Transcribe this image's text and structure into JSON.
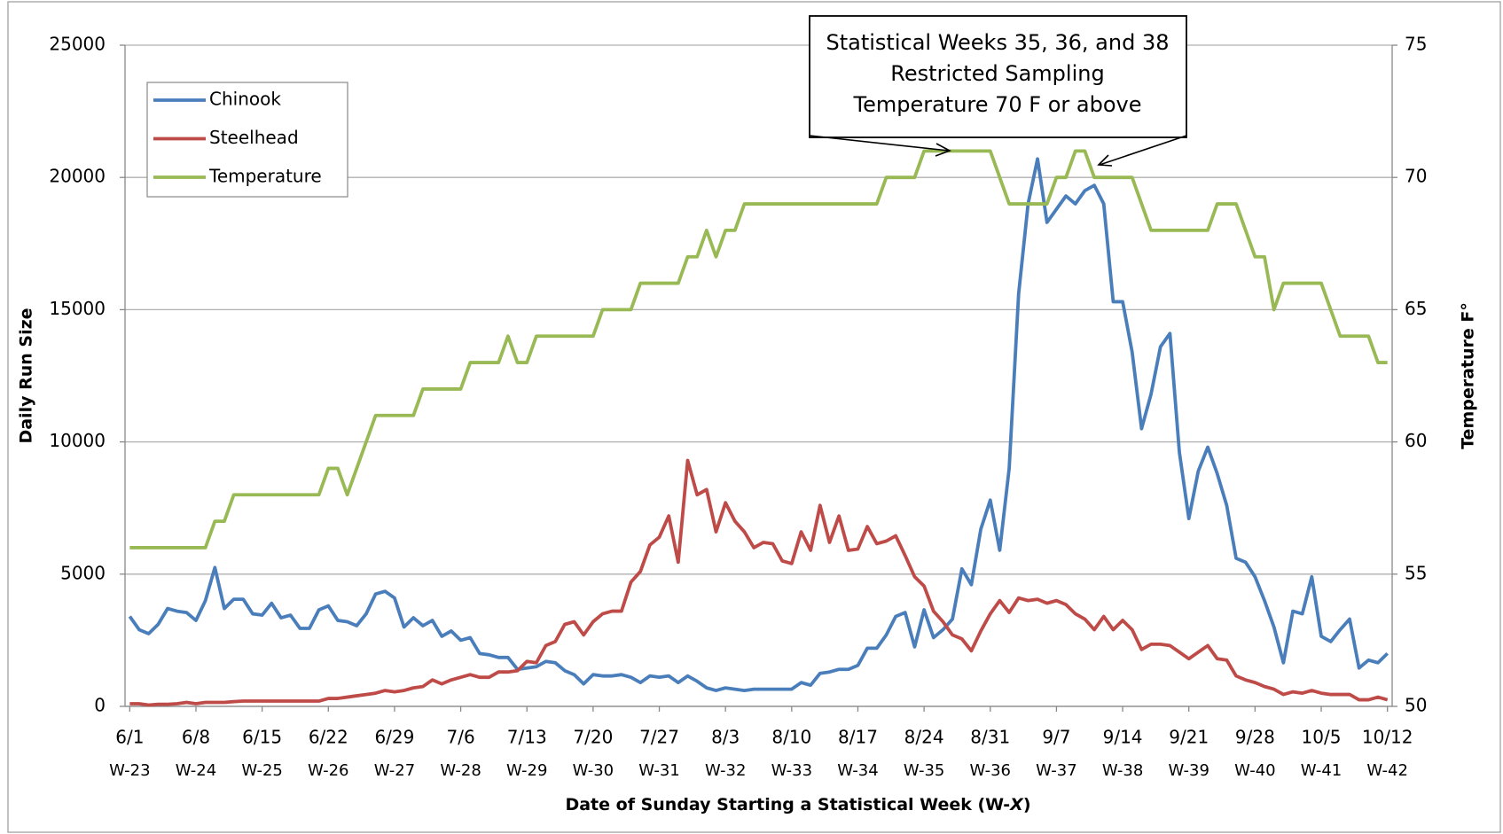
{
  "chart_data": {
    "type": "line",
    "ylabel": "Daily Run Size",
    "y2label": "Temperature F°",
    "xlabel": [
      "Date of Sunday Starting a Statistical Week (W-",
      "X",
      ")"
    ],
    "annotation": [
      "Statistical Weeks 35, 36, and 38",
      "Restricted Sampling",
      "Temperature 70 F or above"
    ],
    "ylim": [
      0,
      25000
    ],
    "yticks": [
      0,
      5000,
      10000,
      15000,
      20000,
      25000
    ],
    "y2lim": [
      50,
      75
    ],
    "y2ticks": [
      50,
      55,
      60,
      65,
      70,
      75
    ],
    "grid": true,
    "legend": "upper left",
    "categories": [
      "6/1",
      null,
      null,
      null,
      null,
      null,
      null,
      "6/8",
      null,
      null,
      null,
      null,
      null,
      null,
      "6/15",
      null,
      null,
      null,
      null,
      null,
      null,
      "6/22",
      null,
      null,
      null,
      null,
      null,
      null,
      "6/29",
      null,
      null,
      null,
      null,
      null,
      null,
      "7/6",
      null,
      null,
      null,
      null,
      null,
      null,
      "7/13",
      null,
      null,
      null,
      null,
      null,
      null,
      "7/20",
      null,
      null,
      null,
      null,
      null,
      null,
      "7/27",
      null,
      null,
      null,
      null,
      null,
      null,
      "8/3",
      null,
      null,
      null,
      null,
      null,
      null,
      "8/10",
      null,
      null,
      null,
      null,
      null,
      null,
      "8/17",
      null,
      null,
      null,
      null,
      null,
      null,
      "8/24",
      null,
      null,
      null,
      null,
      null,
      null,
      "8/31",
      null,
      null,
      null,
      null,
      null,
      null,
      "9/7",
      null,
      null,
      null,
      null,
      null,
      null,
      "9/14",
      null,
      null,
      null,
      null,
      null,
      null,
      "9/21",
      null,
      null,
      null,
      null,
      null,
      null,
      "9/28",
      null,
      null,
      null,
      null,
      null,
      null,
      "10/5",
      null,
      null,
      null,
      null,
      null,
      null,
      "10/12"
    ],
    "category_weeks": [
      "W-23",
      null,
      null,
      null,
      null,
      null,
      null,
      "W-24",
      null,
      null,
      null,
      null,
      null,
      null,
      "W-25",
      null,
      null,
      null,
      null,
      null,
      null,
      "W-26",
      null,
      null,
      null,
      null,
      null,
      null,
      "W-27",
      null,
      null,
      null,
      null,
      null,
      null,
      "W-28",
      null,
      null,
      null,
      null,
      null,
      null,
      "W-29",
      null,
      null,
      null,
      null,
      null,
      null,
      "W-30",
      null,
      null,
      null,
      null,
      null,
      null,
      "W-31",
      null,
      null,
      null,
      null,
      null,
      null,
      "W-32",
      null,
      null,
      null,
      null,
      null,
      null,
      "W-33",
      null,
      null,
      null,
      null,
      null,
      null,
      "W-34",
      null,
      null,
      null,
      null,
      null,
      null,
      "W-35",
      null,
      null,
      null,
      null,
      null,
      null,
      "W-36",
      null,
      null,
      null,
      null,
      null,
      null,
      "W-37",
      null,
      null,
      null,
      null,
      null,
      null,
      "W-38",
      null,
      null,
      null,
      null,
      null,
      null,
      "W-39",
      null,
      null,
      null,
      null,
      null,
      null,
      "W-40",
      null,
      null,
      null,
      null,
      null,
      null,
      "W-41",
      null,
      null,
      null,
      null,
      null,
      null,
      "W-42"
    ],
    "series": [
      {
        "name": "Chinook",
        "color": "#4a7ebb",
        "values": [
          3400,
          2900,
          2750,
          3100,
          3700,
          3600,
          3550,
          3250,
          4000,
          5250,
          3700,
          4050,
          4050,
          3500,
          3450,
          3900,
          3350,
          3450,
          2950,
          2950,
          3650,
          3800,
          3250,
          3200,
          3050,
          3500,
          4250,
          4350,
          4100,
          3000,
          3350,
          3050,
          3250,
          2650,
          2850,
          2500,
          2600,
          2000,
          1950,
          1850,
          1850,
          1400,
          1450,
          1500,
          1700,
          1650,
          1350,
          1200,
          850,
          1200,
          1150,
          1150,
          1200,
          1100,
          900,
          1150,
          1100,
          1150,
          900,
          1150,
          950,
          700,
          600,
          700,
          650,
          600,
          650,
          650,
          650,
          650,
          650,
          900,
          800,
          1250,
          1300,
          1400,
          1400,
          1550,
          2200,
          2200,
          2700,
          3400,
          3550,
          2250,
          3650,
          2600,
          2900,
          3300,
          5200,
          4600,
          6700,
          7800,
          5900,
          9000,
          15600,
          19000,
          20700,
          18300,
          18800,
          19300,
          19000,
          19500,
          19700,
          19000,
          15300,
          15300,
          13400,
          10500,
          11800,
          13600,
          14100,
          9600,
          7100,
          8900,
          9800,
          8800,
          7600,
          5600,
          5450,
          4900,
          4000,
          3000,
          1650,
          3600,
          3500,
          4900,
          2650,
          2450,
          2900,
          3300,
          1450,
          1750,
          1650,
          2000
        ]
      },
      {
        "name": "Steelhead",
        "color": "#be4b48",
        "values": [
          100,
          100,
          50,
          80,
          80,
          100,
          150,
          100,
          150,
          150,
          150,
          180,
          200,
          200,
          200,
          200,
          200,
          200,
          200,
          200,
          200,
          300,
          300,
          350,
          400,
          450,
          500,
          600,
          550,
          600,
          700,
          750,
          1000,
          850,
          1000,
          1100,
          1200,
          1100,
          1100,
          1300,
          1300,
          1350,
          1700,
          1650,
          2300,
          2450,
          3100,
          3200,
          2700,
          3200,
          3500,
          3600,
          3600,
          4700,
          5100,
          6100,
          6400,
          7200,
          5450,
          9300,
          8000,
          8200,
          6600,
          7700,
          7000,
          6600,
          6000,
          6200,
          6150,
          5500,
          5400,
          6600,
          5900,
          7600,
          6200,
          7200,
          5900,
          5950,
          6800,
          6150,
          6250,
          6450,
          5700,
          4900,
          4550,
          3600,
          3200,
          2700,
          2550,
          2100,
          2850,
          3500,
          4000,
          3550,
          4100,
          4000,
          4050,
          3900,
          4000,
          3850,
          3500,
          3300,
          2900,
          3400,
          2900,
          3250,
          2900,
          2150,
          2350,
          2350,
          2300,
          2050,
          1800,
          2050,
          2300,
          1800,
          1750,
          1150,
          1000,
          900,
          750,
          650,
          450,
          550,
          500,
          600,
          500,
          450,
          450,
          450,
          250,
          250,
          350,
          250
        ]
      },
      {
        "name": "Temperature",
        "color": "#98b954",
        "axis": "y2",
        "values": [
          56,
          56,
          56,
          56,
          56,
          56,
          56,
          56,
          56,
          57,
          57,
          58,
          58,
          58,
          58,
          58,
          58,
          58,
          58,
          58,
          58,
          59,
          59,
          58,
          59,
          60,
          61,
          61,
          61,
          61,
          61,
          62,
          62,
          62,
          62,
          62,
          63,
          63,
          63,
          63,
          64,
          63,
          63,
          64,
          64,
          64,
          64,
          64,
          64,
          64,
          65,
          65,
          65,
          65,
          66,
          66,
          66,
          66,
          66,
          67,
          67,
          68,
          67,
          68,
          68,
          69,
          69,
          69,
          69,
          69,
          69,
          69,
          69,
          69,
          69,
          69,
          69,
          69,
          69,
          69,
          70,
          70,
          70,
          70,
          71,
          71,
          71,
          71,
          71,
          71,
          71,
          71,
          70,
          69,
          69,
          69,
          69,
          69,
          70,
          70,
          71,
          71,
          70,
          70,
          70,
          70,
          70,
          69,
          68,
          68,
          68,
          68,
          68,
          68,
          68,
          69,
          69,
          69,
          68,
          67,
          67,
          65,
          66,
          66,
          66,
          66,
          66,
          65,
          64,
          64,
          64,
          64,
          63,
          63
        ]
      }
    ]
  }
}
